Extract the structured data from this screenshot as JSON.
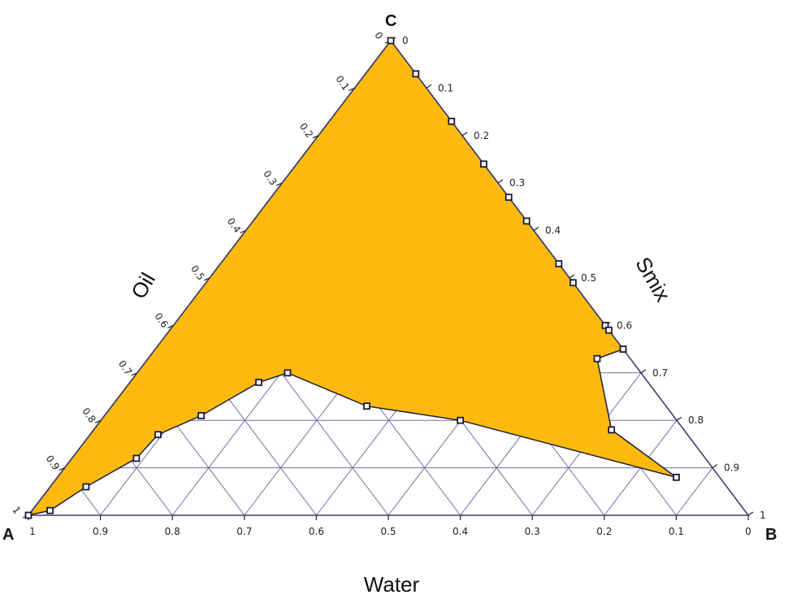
{
  "chart_data": {
    "type": "ternary",
    "title": "",
    "vertices": {
      "A": "A",
      "B": "B",
      "C": "C"
    },
    "axes": {
      "oil": {
        "label": "Oil",
        "ticks": [
          "0",
          "0.1",
          "0.2",
          "0.3",
          "0.4",
          "0.5",
          "0.6",
          "0.7",
          "0.8",
          "0.9",
          "1"
        ]
      },
      "smix": {
        "label": "Smix",
        "ticks": [
          "0",
          "0.1",
          "0.2",
          "0.3",
          "0.4",
          "0.5",
          "0.6",
          "0.7",
          "0.8",
          "0.9",
          "1"
        ]
      },
      "water": {
        "label": "Water",
        "ticks": [
          "1",
          "0.9",
          "0.8",
          "0.7",
          "0.6",
          "0.5",
          "0.4",
          "0.3",
          "0.2",
          "0.1",
          "0"
        ]
      }
    },
    "grid": true,
    "region_color": "#FFBA0D",
    "boundary_color": "#1e1e3a",
    "region_points": [
      {
        "oil": 0.0,
        "water": 0.0
      },
      {
        "oil": 0.07,
        "water": 0.0
      },
      {
        "oil": 0.17,
        "water": 0.04
      },
      {
        "oil": 0.26,
        "water": 0.1
      },
      {
        "oil": 0.33,
        "water": 0.16
      },
      {
        "oil": 0.38,
        "water": 0.21
      },
      {
        "oil": 0.47,
        "water": 0.19
      },
      {
        "oil": 0.51,
        "water": 0.23
      },
      {
        "oil": 0.6,
        "water": 0.18
      },
      {
        "oil": 0.61,
        "water": 0.16
      },
      {
        "oil": 0.65,
        "water": 0.11
      },
      {
        "oil": 0.67,
        "water": 0.21
      },
      {
        "oil": 0.82,
        "water": 0.19
      },
      {
        "oil": 0.92,
        "water": 0.1
      },
      {
        "oil": 0.8,
        "water": 0.4
      },
      {
        "oil": 0.77,
        "water": 0.53
      },
      {
        "oil": 0.7,
        "water": 0.64
      },
      {
        "oil": 0.72,
        "water": 0.68
      },
      {
        "oil": 0.79,
        "water": 0.76
      },
      {
        "oil": 0.83,
        "water": 0.82
      },
      {
        "oil": 0.88,
        "water": 0.85
      },
      {
        "oil": 0.94,
        "water": 0.92
      },
      {
        "oil": 0.99,
        "water": 0.97
      },
      {
        "oil": 1.0,
        "water": 1.0
      }
    ],
    "markers": [
      {
        "oil": 0.0,
        "water": 0.0
      },
      {
        "oil": 0.07,
        "water": 0.0
      },
      {
        "oil": 0.17,
        "water": 0.04
      },
      {
        "oil": 0.26,
        "water": 0.1
      },
      {
        "oil": 0.33,
        "water": 0.16
      },
      {
        "oil": 0.38,
        "water": 0.21
      },
      {
        "oil": 0.47,
        "water": 0.19
      },
      {
        "oil": 0.51,
        "water": 0.23
      },
      {
        "oil": 0.6,
        "water": 0.18
      },
      {
        "oil": 0.61,
        "water": 0.16
      },
      {
        "oil": 0.65,
        "water": 0.11
      },
      {
        "oil": 0.67,
        "water": 0.21
      },
      {
        "oil": 0.82,
        "water": 0.19
      },
      {
        "oil": 0.92,
        "water": 0.1
      },
      {
        "oil": 0.8,
        "water": 0.4
      },
      {
        "oil": 0.77,
        "water": 0.53
      },
      {
        "oil": 0.7,
        "water": 0.64
      },
      {
        "oil": 0.72,
        "water": 0.68
      },
      {
        "oil": 0.79,
        "water": 0.76
      },
      {
        "oil": 0.83,
        "water": 0.82
      },
      {
        "oil": 0.88,
        "water": 0.85
      },
      {
        "oil": 0.94,
        "water": 0.92
      },
      {
        "oil": 0.99,
        "water": 0.97
      },
      {
        "oil": 1.0,
        "water": 1.0
      }
    ]
  }
}
